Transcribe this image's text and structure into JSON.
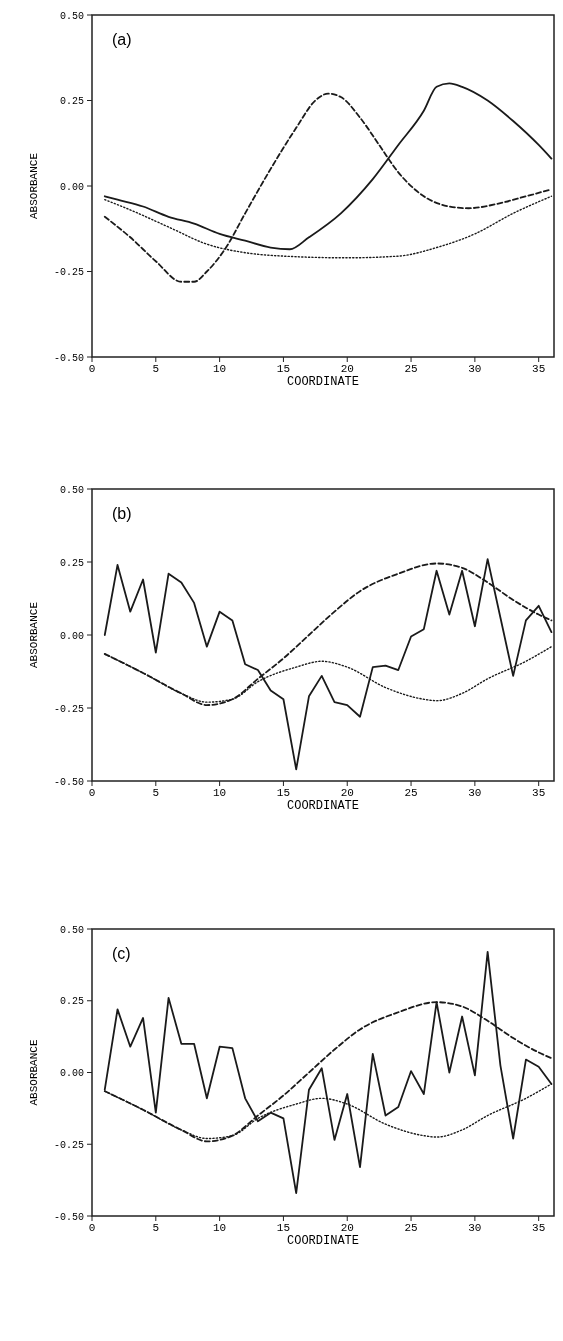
{
  "chart_data": [
    {
      "type": "line",
      "annotations": [
        "(a)"
      ],
      "xlabel": "COORDINATE",
      "ylabel": "ABSORBANCE",
      "xlim": [
        0,
        36.2
      ],
      "xticks": [
        0,
        5,
        10,
        15,
        20,
        25,
        30,
        35
      ],
      "ylim": [
        -0.5,
        0.5
      ],
      "yticks": [
        {
          "value": -0.5,
          "label": "-0.50"
        },
        {
          "value": -0.25,
          "label": "-0.25"
        },
        {
          "value": 0,
          "label": "0.00"
        },
        {
          "value": 0.25,
          "label": "0.25"
        },
        {
          "value": 0.5,
          "label": "0.50"
        }
      ],
      "grid": false,
      "series": [
        {
          "color": "#1a1a1a",
          "line_style": "solid",
          "x": [
            1,
            2,
            4,
            6,
            8,
            10,
            12,
            14,
            15.5,
            17,
            19.5,
            22,
            24,
            26,
            27,
            28,
            29,
            31,
            33,
            35,
            36
          ],
          "values": [
            -0.03,
            -0.04,
            -0.06,
            -0.09,
            -0.11,
            -0.14,
            -0.16,
            -0.18,
            -0.185,
            -0.15,
            -0.08,
            0.02,
            0.12,
            0.22,
            0.29,
            0.3,
            0.29,
            0.25,
            0.19,
            0.12,
            0.08
          ]
        },
        {
          "color": "#1a1a1a",
          "line_style": "dashed",
          "x": [
            1,
            3,
            5,
            7,
            8,
            9,
            10.5,
            12,
            14,
            16,
            17.5,
            18.5,
            19.5,
            21,
            22.5,
            24,
            26,
            28,
            29.5,
            32,
            34,
            36
          ],
          "values": [
            -0.09,
            -0.15,
            -0.22,
            -0.28,
            -0.28,
            -0.25,
            -0.18,
            -0.08,
            0.05,
            0.17,
            0.25,
            0.27,
            0.26,
            0.2,
            0.12,
            0.04,
            -0.03,
            -0.06,
            -0.065,
            -0.05,
            -0.03,
            -0.01
          ]
        },
        {
          "color": "#1a1a1a",
          "line_style": "dotted",
          "x": [
            1,
            3,
            6,
            9,
            12,
            15,
            20,
            24,
            27,
            30,
            33,
            36
          ],
          "values": [
            -0.04,
            -0.07,
            -0.12,
            -0.17,
            -0.195,
            -0.205,
            -0.21,
            -0.205,
            -0.18,
            -0.14,
            -0.08,
            -0.03
          ]
        }
      ]
    },
    {
      "type": "line",
      "annotations": [
        "(b)"
      ],
      "xlabel": "COORDINATE",
      "ylabel": "ABSORBANCE",
      "xlim": [
        0,
        36.2
      ],
      "xticks": [
        0,
        5,
        10,
        15,
        20,
        25,
        30,
        35
      ],
      "ylim": [
        -0.5,
        0.5
      ],
      "yticks": [
        {
          "value": -0.5,
          "label": "-0.50"
        },
        {
          "value": -0.25,
          "label": "-0.25"
        },
        {
          "value": 0,
          "label": "0.00"
        },
        {
          "value": 0.25,
          "label": "0.25"
        },
        {
          "value": 0.5,
          "label": "0.50"
        }
      ],
      "grid": false,
      "series": [
        {
          "color": "#1a1a1a",
          "line_style": "solid",
          "x": [
            1,
            2,
            3,
            4,
            5,
            6,
            7,
            8,
            9,
            10,
            11,
            12,
            13,
            14,
            15,
            16,
            17,
            18,
            19,
            20,
            21,
            22,
            23,
            24,
            25,
            26,
            27,
            28,
            29,
            30,
            31,
            32,
            33,
            34,
            35,
            36
          ],
          "values": [
            0.0,
            0.24,
            0.08,
            0.19,
            -0.06,
            0.21,
            0.18,
            0.11,
            -0.04,
            0.08,
            0.05,
            -0.1,
            -0.12,
            -0.19,
            -0.22,
            -0.46,
            -0.21,
            -0.14,
            -0.23,
            -0.24,
            -0.28,
            -0.11,
            -0.105,
            -0.12,
            -0.005,
            0.02,
            0.22,
            0.07,
            0.22,
            0.03,
            0.26,
            0.06,
            -0.14,
            0.05,
            0.1,
            0.01
          ]
        },
        {
          "color": "#1a1a1a",
          "line_style": "dashed",
          "x": [
            1,
            4,
            7,
            9,
            11,
            13,
            15,
            17,
            19,
            21,
            24,
            27,
            29,
            31,
            33,
            35,
            36
          ],
          "values": [
            -0.065,
            -0.13,
            -0.2,
            -0.24,
            -0.22,
            -0.15,
            -0.08,
            0.0,
            0.08,
            0.15,
            0.21,
            0.245,
            0.23,
            0.18,
            0.12,
            0.07,
            0.05
          ]
        },
        {
          "color": "#1a1a1a",
          "line_style": "dotted",
          "x": [
            1,
            4,
            7,
            9,
            11,
            13,
            16,
            18,
            20,
            23,
            26,
            27,
            29,
            31,
            34,
            36
          ],
          "values": [
            -0.065,
            -0.13,
            -0.2,
            -0.23,
            -0.22,
            -0.16,
            -0.11,
            -0.09,
            -0.11,
            -0.18,
            -0.22,
            -0.225,
            -0.2,
            -0.15,
            -0.09,
            -0.04
          ]
        }
      ]
    },
    {
      "type": "line",
      "annotations": [
        "(c)"
      ],
      "xlabel": "COORDINATE",
      "ylabel": "ABSORBANCE",
      "xlim": [
        0,
        36.2
      ],
      "xticks": [
        0,
        5,
        10,
        15,
        20,
        25,
        30,
        35
      ],
      "ylim": [
        -0.5,
        0.5
      ],
      "yticks": [
        {
          "value": -0.5,
          "label": "-0.50"
        },
        {
          "value": -0.25,
          "label": "-0.25"
        },
        {
          "value": 0,
          "label": "0.00"
        },
        {
          "value": 0.25,
          "label": "0.25"
        },
        {
          "value": 0.5,
          "label": "0.50"
        }
      ],
      "grid": false,
      "series": [
        {
          "color": "#1a1a1a",
          "line_style": "solid",
          "x": [
            1,
            2,
            3,
            4,
            5,
            6,
            7,
            8,
            9,
            10,
            11,
            12,
            13,
            14,
            15,
            16,
            17,
            18,
            19,
            20,
            21,
            22,
            23,
            24,
            25,
            26,
            27,
            28,
            29,
            30,
            31,
            32,
            33,
            34,
            35,
            36
          ],
          "values": [
            -0.06,
            0.22,
            0.09,
            0.19,
            -0.14,
            0.26,
            0.1,
            0.1,
            -0.09,
            0.09,
            0.085,
            -0.09,
            -0.17,
            -0.14,
            -0.16,
            -0.42,
            -0.06,
            0.015,
            -0.235,
            -0.075,
            -0.33,
            0.065,
            -0.15,
            -0.12,
            0.005,
            -0.075,
            0.245,
            0.0,
            0.195,
            -0.01,
            0.42,
            0.025,
            -0.23,
            0.045,
            0.02,
            -0.04
          ]
        },
        {
          "color": "#1a1a1a",
          "line_style": "dashed",
          "x": [
            1,
            4,
            7,
            9,
            11,
            13,
            15,
            17,
            19,
            21,
            24,
            27,
            29,
            31,
            33,
            35,
            36
          ],
          "values": [
            -0.065,
            -0.13,
            -0.2,
            -0.24,
            -0.22,
            -0.15,
            -0.08,
            0.0,
            0.08,
            0.15,
            0.21,
            0.245,
            0.23,
            0.18,
            0.12,
            0.07,
            0.05
          ]
        },
        {
          "color": "#1a1a1a",
          "line_style": "dotted",
          "x": [
            1,
            4,
            7,
            9,
            11,
            13,
            16,
            18,
            20,
            23,
            26,
            27,
            29,
            31,
            34,
            36
          ],
          "values": [
            -0.065,
            -0.13,
            -0.2,
            -0.23,
            -0.22,
            -0.16,
            -0.11,
            -0.09,
            -0.11,
            -0.18,
            -0.22,
            -0.225,
            -0.2,
            -0.15,
            -0.09,
            -0.04
          ]
        }
      ]
    }
  ]
}
